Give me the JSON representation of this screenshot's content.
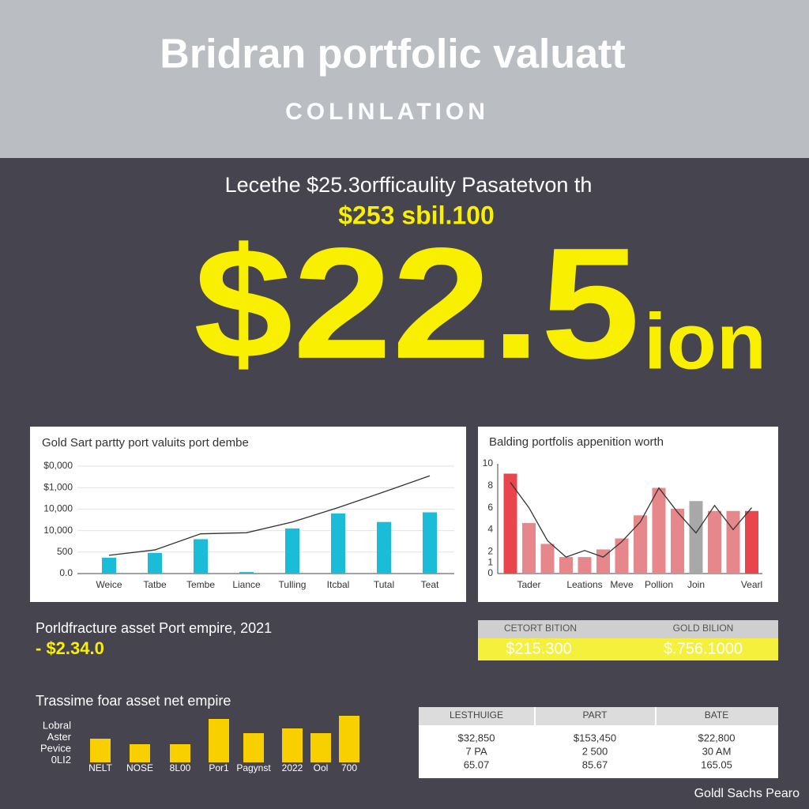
{
  "header": {
    "title": "Bridran portfolic valuatt",
    "subtitle": "COLINLATION"
  },
  "hero": {
    "line1": "Lecethe $25.3orfficaulity Pasatetvon th",
    "line2": "$253 sbil.100",
    "big": "$22.5",
    "suffix": "ion"
  },
  "chart_data": [
    {
      "type": "bar",
      "title": "Gold Sart partty port valuits port dembe",
      "categories": [
        "Weice",
        "Tatbe",
        "Tembe",
        "Liance",
        "Tulling",
        "Itcbal",
        "Tutal",
        "Teat"
      ],
      "series": [
        {
          "type": "bar",
          "color": "#1bbcd8",
          "values": [
            0.74,
            0.96,
            1.6,
            0.07,
            2.1,
            2.8,
            2.4,
            2.85
          ]
        },
        {
          "type": "line",
          "color": "#333333",
          "values": [
            0.85,
            1.1,
            1.85,
            1.9,
            2.4,
            3.07,
            3.8,
            4.55
          ]
        }
      ],
      "ylim": [
        0,
        5
      ],
      "yticks": [
        {
          "value": 0,
          "label": "0.0"
        },
        {
          "value": 1,
          "label": "500"
        },
        {
          "value": 2,
          "label": "10,000"
        },
        {
          "value": 3,
          "label": "10,000"
        },
        {
          "value": 4,
          "label": "$1,000"
        },
        {
          "value": 5,
          "label": "$0,000"
        }
      ],
      "grid": true
    },
    {
      "type": "bar",
      "title": "Balding portfolis appenition worth",
      "categories": [
        null,
        "Tader",
        null,
        null,
        "Leations",
        null,
        "Meve",
        null,
        "Pollion",
        null,
        "Join",
        null,
        null,
        "Vearl"
      ],
      "series": [
        {
          "type": "bar",
          "colors": [
            "#e8454c",
            "#e6878b",
            "#e6878b",
            "#e6878b",
            "#e6878b",
            "#e6878b",
            "#e6878b",
            "#e6878b",
            "#e6878b",
            "#e6878b",
            "#a8a8a8",
            "#e6878b",
            "#e6878b",
            "#e8454c"
          ],
          "values": [
            9.1,
            4.6,
            2.7,
            1.5,
            1.5,
            2.2,
            3.2,
            5.3,
            7.8,
            5.9,
            6.6,
            5.7,
            5.7,
            5.7
          ]
        },
        {
          "type": "line",
          "color": "#333333",
          "values": [
            8.3,
            6.0,
            3.0,
            1.5,
            2.1,
            1.5,
            2.9,
            4.7,
            7.8,
            5.6,
            3.7,
            6.2,
            4.0,
            6.0
          ]
        }
      ],
      "ylim": [
        0,
        10
      ],
      "yticks": [
        0,
        1,
        2,
        4,
        6,
        8,
        10
      ],
      "grid": false
    },
    {
      "type": "bar",
      "title": "Trassime foar asset net empire",
      "axis_labels": [
        "Lobral",
        "Aster",
        "Pevice",
        "0LI2"
      ],
      "categories": [
        "NELT",
        "NOSE",
        "8L00",
        "Por1",
        "Pagynst",
        "2022",
        "Ool",
        "700"
      ],
      "color": "#f8d000",
      "values": [
        30,
        23,
        23,
        55,
        37,
        43,
        37,
        59
      ],
      "ylim": [
        0,
        60
      ]
    }
  ],
  "summary": {
    "label": "Porldfracture asset Port empire, 2021",
    "value": "- $2.34.0"
  },
  "highlight_table": {
    "headers": [
      "CETORT BITION",
      "GOLD BILION"
    ],
    "values": [
      "$215.300",
      "$.756.1000"
    ]
  },
  "table": {
    "headers": [
      "LESTHUIGE",
      "PART",
      "BATE"
    ],
    "rows": [
      [
        "$32,850",
        "$153,450",
        "$22,800"
      ],
      [
        "7 PA",
        "2 500",
        "30 AM"
      ],
      [
        "65.07",
        "85.67",
        "165.05"
      ]
    ]
  },
  "footer": "Goldl Sachs Pearo"
}
